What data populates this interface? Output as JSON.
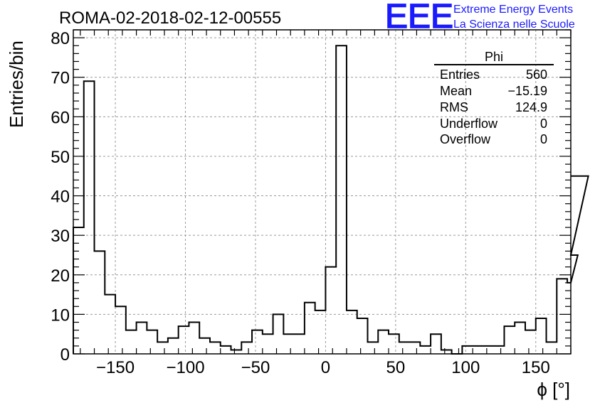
{
  "title": "ROMA-02-2018-02-12-00555",
  "logo": {
    "letters": "EEE",
    "line1": "Extreme Energy Events",
    "line2": "La Scienza nelle Scuole",
    "color": "#1a1aff"
  },
  "stats": {
    "name": "Phi",
    "rows": [
      {
        "label": "Entries",
        "value": "560"
      },
      {
        "label": "Mean",
        "value": "−15.19"
      },
      {
        "label": "RMS",
        "value": "124.9"
      },
      {
        "label": "Underflow",
        "value": "0"
      },
      {
        "label": "Overflow",
        "value": "0"
      }
    ]
  },
  "chart_data": {
    "type": "histogram",
    "title": "ROMA-02-2018-02-12-00555",
    "xlabel": "ϕ [°]",
    "ylabel": "Entries/bin",
    "xlim": [
      -180,
      175
    ],
    "ylim": [
      0,
      82
    ],
    "grid": true,
    "bin_width": 7.5,
    "bin_start": -180,
    "x_ticks": [
      -150,
      -100,
      -50,
      0,
      50,
      100,
      150
    ],
    "x_tick_labels": [
      "−150",
      "−100",
      "−50",
      "0",
      "50",
      "100",
      "150"
    ],
    "y_ticks": [
      0,
      10,
      20,
      30,
      40,
      50,
      60,
      70,
      80
    ],
    "y_tick_labels": [
      "0",
      "10",
      "20",
      "30",
      "40",
      "50",
      "60",
      "70",
      "80"
    ],
    "values": [
      32,
      69,
      26,
      15,
      12,
      6,
      8,
      6,
      3,
      4,
      7,
      8,
      4,
      3,
      2,
      1,
      3,
      6,
      5,
      10,
      5,
      5,
      13,
      11,
      22,
      78,
      11,
      9,
      3,
      6,
      5,
      3,
      3,
      2,
      5,
      1,
      0,
      2,
      2,
      2,
      2,
      7,
      8,
      6,
      9,
      3,
      19,
      18,
      25,
      45
    ],
    "line_color": "#000000"
  }
}
